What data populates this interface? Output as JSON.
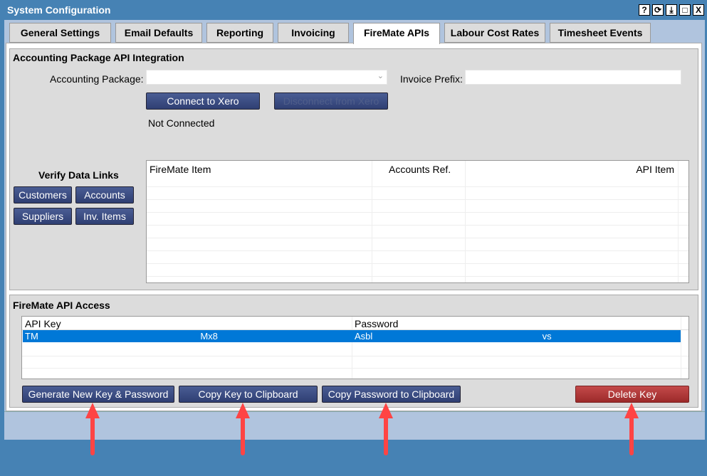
{
  "window": {
    "title": "System Configuration",
    "controls": [
      "?",
      "⟳",
      "⤓",
      "□",
      "X"
    ]
  },
  "tabs": [
    {
      "label": "General Settings"
    },
    {
      "label": "Email Defaults"
    },
    {
      "label": "Reporting"
    },
    {
      "label": "Invoicing"
    },
    {
      "label": "FireMate APIs",
      "active": true
    },
    {
      "label": "Labour Cost Rates"
    },
    {
      "label": "Timesheet Events"
    }
  ],
  "accounting": {
    "title": "Accounting Package API Integration",
    "package_label": "Accounting Package:",
    "package_value": "",
    "prefix_label": "Invoice Prefix:",
    "prefix_value": "",
    "connect": "Connect to Xero",
    "disconnect": "Disconnect from Xero",
    "status": "Not Connected",
    "verify_title": "Verify Data Links",
    "verify_buttons": [
      "Customers",
      "Accounts",
      "Suppliers",
      "Inv. Items"
    ],
    "columns": [
      "FireMate Item",
      "Accounts Ref.",
      "API Item"
    ]
  },
  "api": {
    "title": "FireMate API Access",
    "columns": [
      "API Key",
      "Password"
    ],
    "rows": [
      {
        "key": "TM                                                               Mx8",
        "password": "Asbl                                                                  vs"
      }
    ],
    "buttons": {
      "generate": "Generate New Key & Password",
      "copy_key": "Copy Key to Clipboard",
      "copy_password": "Copy Password to Clipboard",
      "delete": "Delete Key"
    }
  },
  "colors": {
    "titlebar": "#4682b4",
    "selection": "#0078d7",
    "button": "#3a4a80",
    "delete": "#b03a3a",
    "arrow": "#ff4444"
  }
}
